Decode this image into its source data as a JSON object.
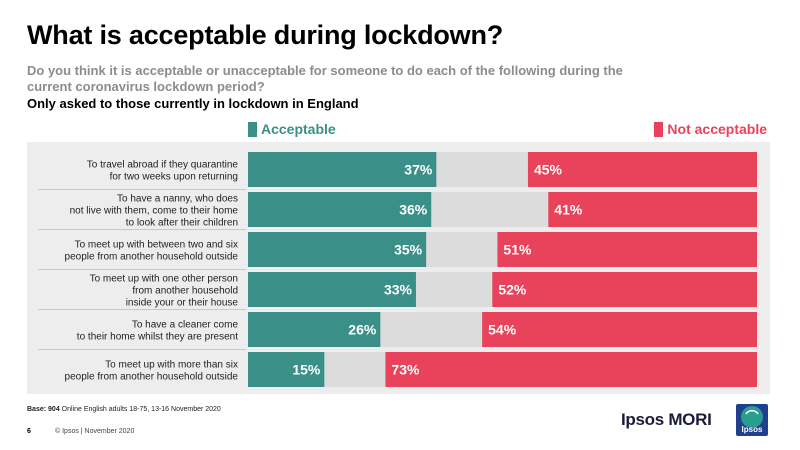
{
  "title": "What is acceptable during lockdown?",
  "question": "Do you think it is acceptable or unacceptable for someone to do each of the following during the current coronavirus lockdown period?",
  "subnote": "Only asked to those currently in lockdown in England",
  "legend": {
    "acceptable": "Acceptable",
    "not_acceptable": "Not acceptable"
  },
  "colors": {
    "acceptable": "#3a9089",
    "not_acceptable": "#e8435a",
    "neutral": "#dcdcdc",
    "background": "#ededed"
  },
  "chart_data": {
    "type": "bar",
    "orientation": "horizontal-diverging",
    "title": "What is acceptable during lockdown?",
    "categories": [
      [
        "To travel abroad if they quarantine",
        "for two weeks upon returning"
      ],
      [
        "To have a nanny, who does",
        "not live with them, come to their home",
        "to look after their children"
      ],
      [
        "To meet up with between two and six",
        "people from another household outside"
      ],
      [
        "To meet up with one other person",
        "from another household",
        "inside your or their house"
      ],
      [
        "To have a cleaner come",
        "to their home whilst they are present"
      ],
      [
        "To meet up with more than six",
        "people from another household outside"
      ]
    ],
    "series": [
      {
        "name": "Acceptable",
        "values": [
          37,
          36,
          35,
          33,
          26,
          15
        ]
      },
      {
        "name": "Not acceptable",
        "values": [
          45,
          41,
          51,
          52,
          54,
          73
        ]
      }
    ],
    "unit": "%",
    "xlim": [
      0,
      100
    ]
  },
  "footer": {
    "base_label": "Base:",
    "base_value": "904",
    "base_text": "Online English adults 18-75, 13-16 November 2020",
    "page_number": "6",
    "copyright": "© Ipsos | November 2020",
    "brand": "Ipsos MORI",
    "logo_text": "Ipsos"
  }
}
